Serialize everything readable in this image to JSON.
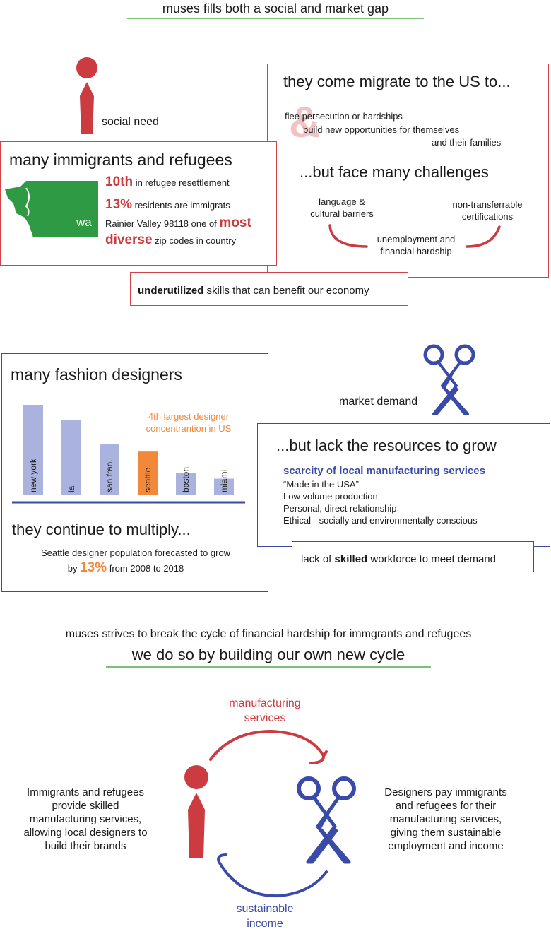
{
  "header": {
    "title": "muses fills both a social and market gap"
  },
  "social": {
    "label": "social need",
    "immigrants_box": {
      "title": "many immigrants and refugees",
      "state_label": "wa",
      "stat1_value": "10th",
      "stat1_text": "in refugee resettlement",
      "stat2_value": "13%",
      "stat2_text": "residents are immigrats",
      "stat3_text_a": "Rainier Valley 98118 one of",
      "stat3_value_a": "most",
      "stat3_value_b": "diverse",
      "stat3_text_b": "zip codes in country"
    },
    "migrate_box": {
      "title": "they come migrate to the US to...",
      "reason1": "flee persecution or hardships",
      "reason2": "build new opportunities for themselves",
      "reason3": "and their families",
      "challenges_title": "...but face many challenges",
      "challenge1": "language &\ncultural barriers",
      "challenge2": "non-transferrable\ncertifications",
      "challenge3": "unemployment and\nfinancial hardship"
    },
    "underutilized": {
      "bold": "underutilized",
      "rest": "skills that can benefit our economy"
    }
  },
  "market": {
    "label": "market demand",
    "designers_box": {
      "title": "many fashion designers",
      "annotation": "4th largest designer\nconcentrantion in US",
      "subtitle": "they continue to multiply...",
      "forecast_a": "Seattle designer population forecasted to grow",
      "forecast_b": "by",
      "forecast_value": "13%",
      "forecast_c": "from 2008 to 2018"
    },
    "resources_box": {
      "title": "...but lack the resources to grow",
      "heading": "scarcity of local manufacturing services",
      "items": [
        "“Made in the USA”",
        "Low volume production",
        "Personal, direct relationship",
        "Ethical - socially and environmentally conscious"
      ]
    },
    "workforce": {
      "a": "lack of",
      "bold": "skilled",
      "b": "workforce to meet demand"
    }
  },
  "chart_data": {
    "type": "bar",
    "categories": [
      "new york",
      "la",
      "san fran.",
      "seattle",
      "boston",
      "miami"
    ],
    "values": [
      6,
      5,
      3.4,
      2.9,
      1.5,
      1.1
    ],
    "highlight": "seattle",
    "colors": {
      "default": "#aab3dd",
      "highlight": "#f2893a",
      "axis": "#3a4aa8"
    }
  },
  "cycle": {
    "line1": "muses strives to break the cycle of financial hardship for immgrants and refugees",
    "line2": "we do so by building our own new cycle",
    "top_label": "manufacturing\nservices",
    "bottom_label": "sustainable\nincome",
    "left_text": "Immigrants and refugees\nprovide skilled\nmanufacturing services,\nallowing local designers to\nbuild their brands",
    "right_text": "Designers pay immigrants\nand refugees for their\nmanufacturing services,\ngiving them sustainable\nemployment and income"
  },
  "colors": {
    "red": "#cc3b40",
    "blue": "#3a4aa8",
    "green": "#2e9a44",
    "orange": "#f2893a",
    "light_red": "#f4c2c4"
  }
}
